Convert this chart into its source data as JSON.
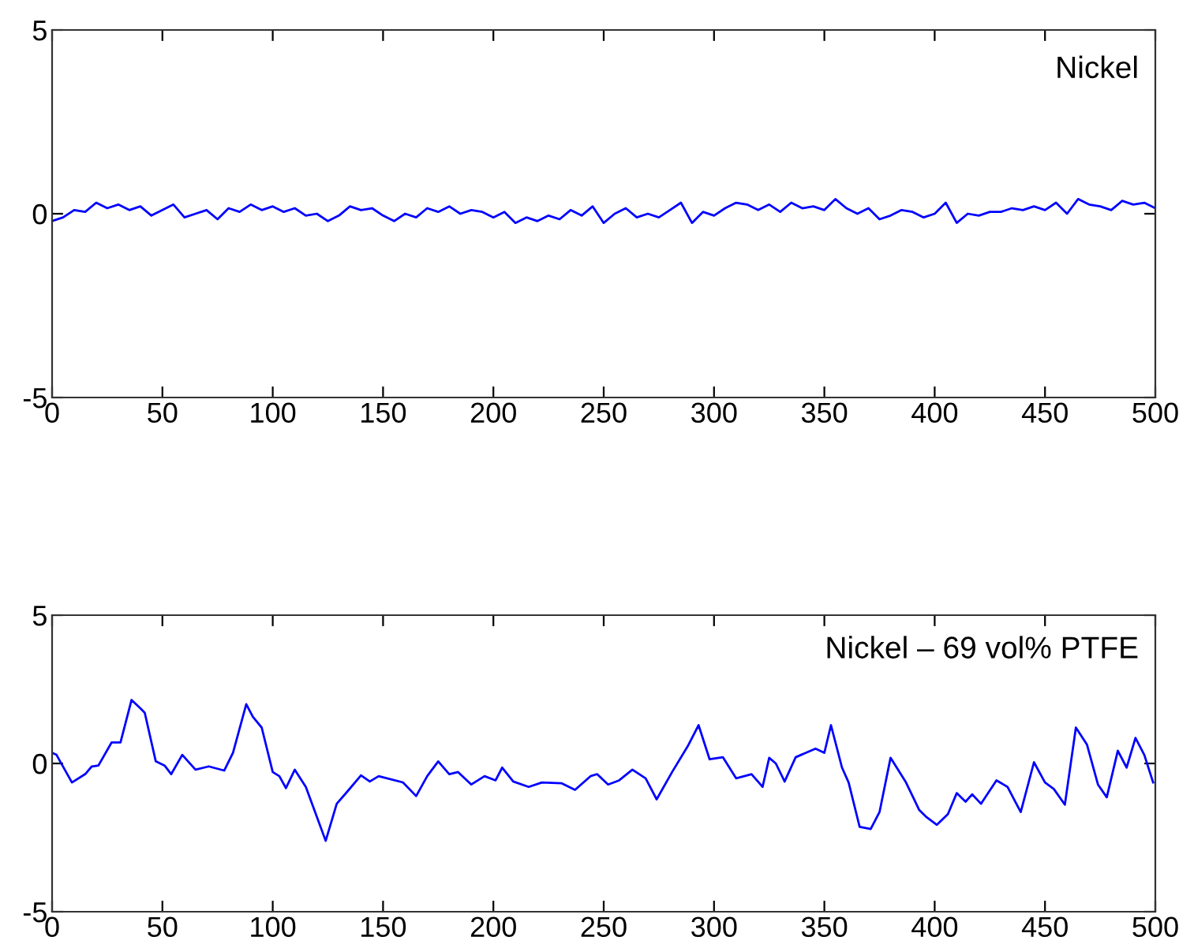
{
  "chart_data": [
    {
      "type": "line",
      "annotations": [
        "Nickel"
      ],
      "xlim": [
        0,
        500
      ],
      "ylim": [
        -5,
        5
      ],
      "xticks": [
        0,
        50,
        100,
        150,
        200,
        250,
        300,
        350,
        400,
        450,
        500
      ],
      "yticks": [
        -5,
        0,
        5
      ],
      "grid": false,
      "legend": false,
      "series": [
        {
          "color": "#0000ff",
          "x": [
            0,
            5,
            10,
            15,
            20,
            25,
            30,
            35,
            40,
            45,
            50,
            55,
            60,
            65,
            70,
            75,
            80,
            85,
            90,
            95,
            100,
            105,
            110,
            115,
            120,
            125,
            130,
            135,
            140,
            145,
            150,
            155,
            160,
            165,
            170,
            175,
            180,
            185,
            190,
            195,
            200,
            205,
            210,
            215,
            220,
            225,
            230,
            235,
            240,
            245,
            250,
            255,
            260,
            265,
            270,
            275,
            280,
            285,
            290,
            295,
            300,
            305,
            310,
            315,
            320,
            325,
            330,
            335,
            340,
            345,
            350,
            355,
            360,
            365,
            370,
            375,
            380,
            385,
            390,
            395,
            400,
            405,
            410,
            415,
            420,
            425,
            430,
            435,
            440,
            445,
            450,
            455,
            460,
            465,
            470,
            475,
            480,
            485,
            490,
            495,
            500
          ],
          "values": [
            -0.2,
            -0.1,
            0.1,
            0.05,
            0.3,
            0.15,
            0.25,
            0.1,
            0.2,
            -0.05,
            0.1,
            0.25,
            -0.1,
            0.0,
            0.1,
            -0.15,
            0.15,
            0.05,
            0.25,
            0.1,
            0.2,
            0.05,
            0.15,
            -0.05,
            0.0,
            -0.2,
            -0.05,
            0.2,
            0.1,
            0.15,
            -0.05,
            -0.2,
            0.0,
            -0.1,
            0.15,
            0.05,
            0.2,
            0.0,
            0.1,
            0.05,
            -0.1,
            0.05,
            -0.25,
            -0.1,
            -0.2,
            -0.05,
            -0.15,
            0.1,
            -0.05,
            0.2,
            -0.25,
            0.0,
            0.15,
            -0.1,
            0.0,
            -0.1,
            0.1,
            0.3,
            -0.25,
            0.05,
            -0.05,
            0.15,
            0.3,
            0.25,
            0.1,
            0.25,
            0.05,
            0.3,
            0.15,
            0.2,
            0.1,
            0.4,
            0.15,
            0.0,
            0.15,
            -0.15,
            -0.05,
            0.1,
            0.05,
            -0.1,
            0.0,
            0.3,
            -0.25,
            0.0,
            -0.05,
            0.05,
            0.05,
            0.15,
            0.1,
            0.2,
            0.1,
            0.3,
            0.0,
            0.4,
            0.25,
            0.2,
            0.1,
            0.35,
            0.25,
            0.3,
            0.15
          ]
        }
      ]
    },
    {
      "type": "line",
      "annotations": [
        "Nickel – 69 vol% PTFE"
      ],
      "xlim": [
        0,
        500
      ],
      "ylim": [
        -5,
        5
      ],
      "xticks": [
        0,
        50,
        100,
        150,
        200,
        250,
        300,
        350,
        400,
        450,
        500
      ],
      "yticks": [
        -5,
        0,
        5
      ],
      "grid": false,
      "legend": false,
      "series": [
        {
          "color": "#0000ff",
          "x": [
            0,
            2,
            9,
            15,
            18,
            21,
            27,
            31,
            36,
            40,
            42,
            47,
            51,
            54,
            59,
            65,
            71,
            78,
            82,
            88,
            91,
            95,
            100,
            103,
            106,
            110,
            115,
            124,
            129,
            134,
            140,
            144,
            148,
            159,
            165,
            170,
            175,
            180,
            184,
            190,
            196,
            201,
            204,
            209,
            216,
            222,
            231,
            237,
            244,
            247,
            252,
            257,
            263,
            269,
            274,
            281,
            288,
            293,
            298,
            304,
            310,
            317,
            322,
            325,
            328,
            332,
            337,
            346,
            350,
            353,
            358,
            361,
            366,
            371,
            375,
            380,
            387,
            393,
            396,
            401,
            406,
            410,
            414,
            417,
            421,
            428,
            433,
            439,
            445,
            450,
            454,
            459,
            464,
            469,
            474,
            478,
            483,
            487,
            491,
            495,
            499
          ],
          "values": [
            0.36,
            0.29,
            -0.64,
            -0.36,
            -0.1,
            -0.07,
            0.71,
            0.71,
            2.14,
            1.86,
            1.71,
            0.07,
            -0.07,
            -0.36,
            0.29,
            -0.21,
            -0.1,
            -0.24,
            0.36,
            2.0,
            1.57,
            1.21,
            -0.29,
            -0.43,
            -0.83,
            -0.21,
            -0.79,
            -2.61,
            -1.36,
            -0.93,
            -0.4,
            -0.61,
            -0.43,
            -0.64,
            -1.1,
            -0.43,
            0.07,
            -0.36,
            -0.29,
            -0.71,
            -0.43,
            -0.57,
            -0.14,
            -0.61,
            -0.79,
            -0.64,
            -0.67,
            -0.89,
            -0.43,
            -0.36,
            -0.71,
            -0.57,
            -0.21,
            -0.5,
            -1.21,
            -0.29,
            0.57,
            1.29,
            0.14,
            0.21,
            -0.5,
            -0.36,
            -0.79,
            0.19,
            0.0,
            -0.61,
            0.21,
            0.5,
            0.36,
            1.29,
            -0.14,
            -0.64,
            -2.14,
            -2.21,
            -1.64,
            0.19,
            -0.64,
            -1.57,
            -1.79,
            -2.07,
            -1.71,
            -1.0,
            -1.29,
            -1.04,
            -1.36,
            -0.57,
            -0.79,
            -1.64,
            0.04,
            -0.64,
            -0.86,
            -1.39,
            1.21,
            0.64,
            -0.71,
            -1.14,
            0.43,
            -0.14,
            0.86,
            0.29,
            -0.64
          ]
        }
      ]
    }
  ]
}
